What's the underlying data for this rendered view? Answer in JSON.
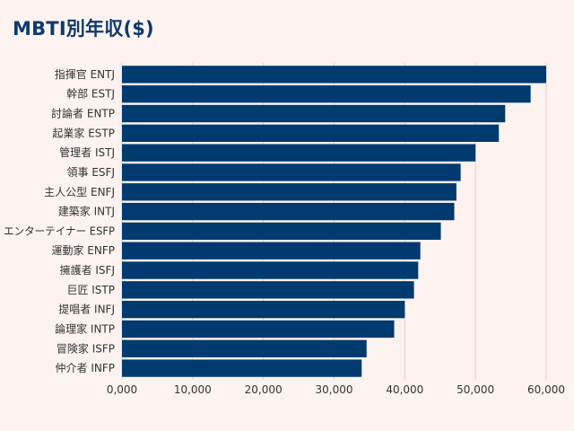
{
  "title": "MBTI別年収($)",
  "colors": {
    "bar": "#003a6e",
    "grid": "#d9d3d2",
    "background": "#fcf3f1"
  },
  "chart_data": {
    "type": "bar",
    "orientation": "horizontal",
    "title": "MBTI別年収($)",
    "xlabel": "",
    "ylabel": "",
    "xlim": [
      0,
      60000
    ],
    "x_ticks": [
      0,
      10000,
      20000,
      30000,
      40000,
      50000,
      60000
    ],
    "x_tick_labels": [
      "0,000",
      "10,000",
      "20,000",
      "30,000",
      "40,000",
      "50,000",
      "60,000"
    ],
    "grid": "vertical",
    "categories": [
      "指揮官 ENTJ",
      "幹部 ESTJ",
      "討論者 ENTP",
      "起業家 ESTP",
      "管理者 ISTJ",
      "領事 ESFJ",
      "主人公型 ENFJ",
      "建築家 INTJ",
      "エンターテイナー ESFP",
      "運動家 ENFP",
      "擁護者 ISFJ",
      "巨匠 ISTP",
      "提唱者 INFJ",
      "論理家 INTP",
      "冒険家 ISFP",
      "仲介者 INFP"
    ],
    "values": [
      60000,
      57800,
      54200,
      53300,
      50000,
      47900,
      47300,
      47000,
      45100,
      42200,
      41900,
      41300,
      40000,
      38500,
      34600,
      33900
    ]
  }
}
